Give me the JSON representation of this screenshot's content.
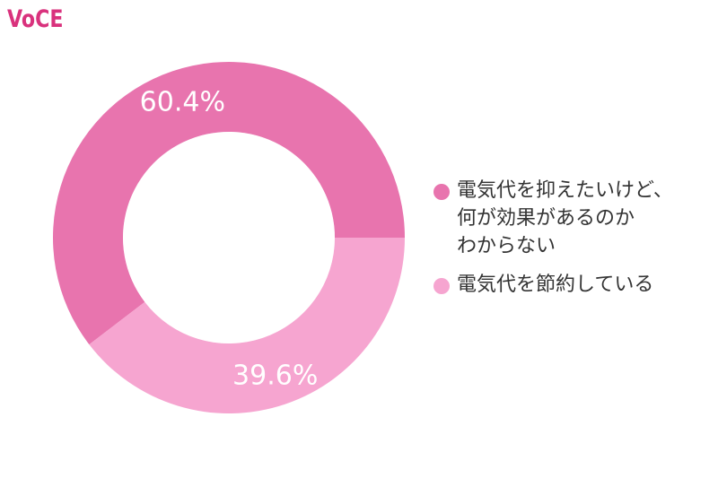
{
  "brand": {
    "logo_text": "VoCE",
    "logo_color": "#d9327d"
  },
  "chart_data": {
    "type": "pie",
    "variant": "donut",
    "title": "",
    "categories": [
      "電気代を抑えたいけど、\n何が効果があるのか\nわからない",
      "電気代を節約している"
    ],
    "values": [
      60.4,
      39.6
    ],
    "unit": "%",
    "data_labels": [
      "60.4%",
      "39.6%"
    ],
    "colors": [
      "#e874ae",
      "#f6a5d0"
    ],
    "legend": "right"
  }
}
